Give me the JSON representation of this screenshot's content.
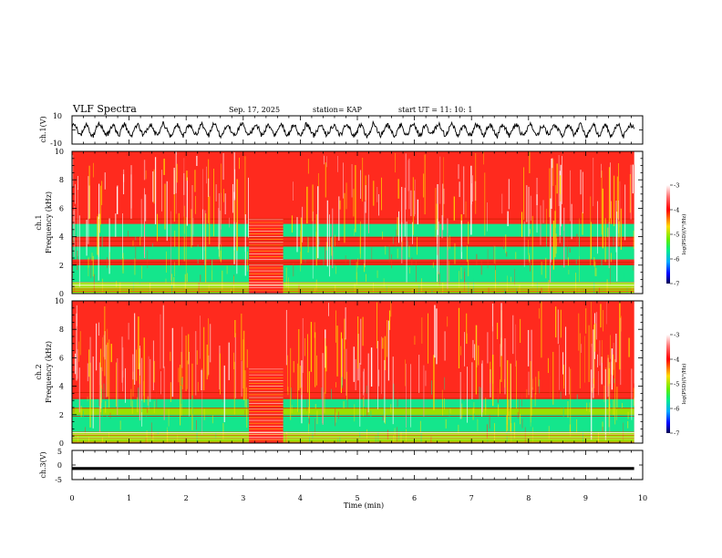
{
  "header": {
    "title": "VLF Spectra",
    "date": "Sep. 17, 2025",
    "station": "station= KAP",
    "start": "start  UT =   11: 10: 1"
  },
  "colors": {
    "background": "#ffffff",
    "axes": "#000000",
    "high": "#ff2a1e",
    "mid_high": "#ffd400",
    "mid": "#9be000",
    "mid_low": "#14e68c",
    "low": "#00c8e6",
    "lowest": "#00008c"
  },
  "chart_data": [
    {
      "id": "ch1-waveform",
      "type": "line",
      "ylabel": "ch.1(V)",
      "ylim": [
        -10,
        10
      ],
      "ytick_labels": [
        "10",
        "-10"
      ],
      "xlim": [
        0,
        10
      ],
      "series": [
        {
          "x_range": [
            0,
            9.85
          ],
          "amplitude_range": [
            -6,
            6
          ]
        }
      ]
    },
    {
      "id": "ch1-spectrogram",
      "type": "heatmap",
      "ylabel": "ch.1\nFrequency (kHz)",
      "ylim": [
        0,
        10
      ],
      "yticks": [
        0,
        2,
        4,
        6,
        8,
        10
      ],
      "xlim": [
        0,
        10
      ],
      "data_x_end": 9.85,
      "gap_segment": [
        3.1,
        3.7
      ],
      "bands": [
        {
          "from": 0,
          "to": 0.8,
          "level": "mid"
        },
        {
          "from": 0.8,
          "to": 2.0,
          "level": "mid_low"
        },
        {
          "from": 2.0,
          "to": 2.4,
          "level": "high"
        },
        {
          "from": 2.4,
          "to": 3.3,
          "level": "mid_low"
        },
        {
          "from": 3.3,
          "to": 4.0,
          "level": "high"
        },
        {
          "from": 4.0,
          "to": 4.9,
          "level": "mid_low"
        },
        {
          "from": 4.9,
          "to": 10.0,
          "level": "high"
        }
      ],
      "colorbar": {
        "label": "log(PSD)(V²/Hz)",
        "ticks": [
          -3,
          -4,
          -5,
          -6,
          -7
        ],
        "range": [
          -7,
          -3
        ]
      }
    },
    {
      "id": "ch2-spectrogram",
      "type": "heatmap",
      "ylabel": "ch.2\nFrequency (kHz)",
      "ylim": [
        0,
        10
      ],
      "yticks": [
        0,
        2,
        4,
        6,
        8,
        10
      ],
      "xlim": [
        0,
        10
      ],
      "data_x_end": 9.85,
      "gap_segment": [
        3.1,
        3.7
      ],
      "bands": [
        {
          "from": 0,
          "to": 0.8,
          "level": "mid"
        },
        {
          "from": 0.8,
          "to": 2.0,
          "level": "mid_low"
        },
        {
          "from": 2.0,
          "to": 2.5,
          "level": "mid"
        },
        {
          "from": 2.5,
          "to": 3.1,
          "level": "mid_low"
        },
        {
          "from": 3.1,
          "to": 3.7,
          "level": "high"
        },
        {
          "from": 3.7,
          "to": 10.0,
          "level": "high"
        }
      ],
      "colorbar": {
        "label": "log(PSD)(V²/Hz)",
        "ticks": [
          -3,
          -4,
          -5,
          -6,
          -7
        ],
        "range": [
          -7,
          -3
        ]
      }
    },
    {
      "id": "ch3-waveform",
      "type": "line",
      "ylabel": "ch.3(V)",
      "ylim": [
        -5,
        5
      ],
      "ytick_labels": [
        "5",
        "0",
        "-5"
      ],
      "xlim": [
        0,
        10
      ],
      "series": [
        {
          "x_range": [
            0,
            9.85
          ],
          "center": -1.2,
          "amplitude_range": [
            -0.5,
            0.5
          ]
        }
      ]
    }
  ],
  "xaxis": {
    "label": "Time (min)",
    "ticks": [
      "0",
      "1",
      "2",
      "3",
      "4",
      "5",
      "6",
      "7",
      "8",
      "9",
      "10"
    ]
  }
}
